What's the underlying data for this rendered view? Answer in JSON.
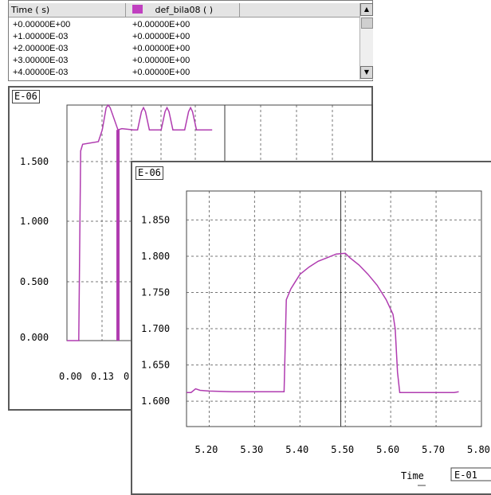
{
  "table": {
    "columns": [
      "Time ( s)",
      "def_bila08 ( )"
    ],
    "series_swatch_color": "#c040c0",
    "rows": [
      [
        "+0.00000E+00",
        "+0.00000E+00"
      ],
      [
        "+1.00000E-03",
        "+0.00000E+00"
      ],
      [
        "+2.00000E-03",
        "+0.00000E+00"
      ],
      [
        "+3.00000E-03",
        "+0.00000E+00"
      ],
      [
        "+4.00000E-03",
        "+0.00000E+00"
      ]
    ],
    "scroll_up_icon": "arrow-up-icon",
    "scroll_down_icon": "arrow-down-icon"
  },
  "back_plot": {
    "scale_label": "E-06",
    "y_ticks": [
      "1.500",
      "1.000",
      "0.500",
      "0.000"
    ],
    "x_ticks": [
      "0.00",
      "0.13",
      "0"
    ]
  },
  "front_plot": {
    "scale_label": "E-06",
    "x_axis_title": "Time",
    "x_scale_label": "E-01"
  },
  "chart_data": [
    {
      "type": "line",
      "xlim": [
        0.0,
        0.78
      ],
      "ylim": [
        0.0,
        1.8
      ],
      "y_tick_labels": [
        "1.500",
        "1.000",
        "0.500",
        "0.000"
      ],
      "x_tick_labels": [
        "0.00",
        "0.13"
      ],
      "line_color": "#b03cb0",
      "grid": true,
      "series": [
        {
          "x": [
            0.0,
            0.03,
            0.035,
            0.04,
            0.08,
            0.09,
            0.1,
            0.105,
            0.11,
            0.13,
            0.14,
            0.17,
            0.18,
            0.19,
            0.195,
            0.2,
            0.21,
            0.22,
            0.23,
            0.24,
            0.25,
            0.255,
            0.26,
            0.27,
            0.28,
            0.29,
            0.3,
            0.31,
            0.315,
            0.32,
            0.33,
            0.34,
            0.35,
            0.36,
            0.37
          ],
          "y": [
            0.0,
            0.0,
            1.45,
            1.5,
            1.52,
            1.61,
            1.78,
            1.8,
            1.78,
            1.61,
            1.62,
            1.61,
            1.61,
            1.75,
            1.78,
            1.75,
            1.61,
            1.61,
            1.61,
            1.61,
            1.75,
            1.78,
            1.75,
            1.61,
            1.61,
            1.61,
            1.61,
            1.75,
            1.78,
            1.75,
            1.61,
            1.61,
            1.61,
            1.61,
            1.61
          ]
        }
      ]
    },
    {
      "type": "line",
      "xlim": [
        5.15,
        5.8
      ],
      "ylim": [
        1.565,
        1.89
      ],
      "x_tick_labels": [
        "5.20",
        "5.30",
        "5.40",
        "5.50",
        "5.60",
        "5.70",
        "5.80"
      ],
      "y_tick_labels": [
        "1.850",
        "1.800",
        "1.750",
        "1.700",
        "1.650",
        "1.600"
      ],
      "xlabel": "Time",
      "line_color": "#b03cb0",
      "grid": true,
      "cursor_x": 5.49,
      "series": [
        {
          "x": [
            5.15,
            5.16,
            5.17,
            5.18,
            5.2,
            5.25,
            5.3,
            5.35,
            5.365,
            5.37,
            5.38,
            5.39,
            5.4,
            5.42,
            5.44,
            5.46,
            5.48,
            5.5,
            5.51,
            5.53,
            5.55,
            5.57,
            5.59,
            5.605,
            5.61,
            5.615,
            5.62,
            5.63,
            5.65,
            5.7,
            5.74,
            5.75
          ],
          "y": [
            1.612,
            1.612,
            1.617,
            1.615,
            1.614,
            1.613,
            1.613,
            1.613,
            1.613,
            1.74,
            1.755,
            1.765,
            1.775,
            1.785,
            1.793,
            1.798,
            1.803,
            1.804,
            1.798,
            1.788,
            1.775,
            1.76,
            1.74,
            1.72,
            1.7,
            1.64,
            1.612,
            1.612,
            1.612,
            1.612,
            1.612,
            1.613
          ]
        }
      ]
    }
  ]
}
